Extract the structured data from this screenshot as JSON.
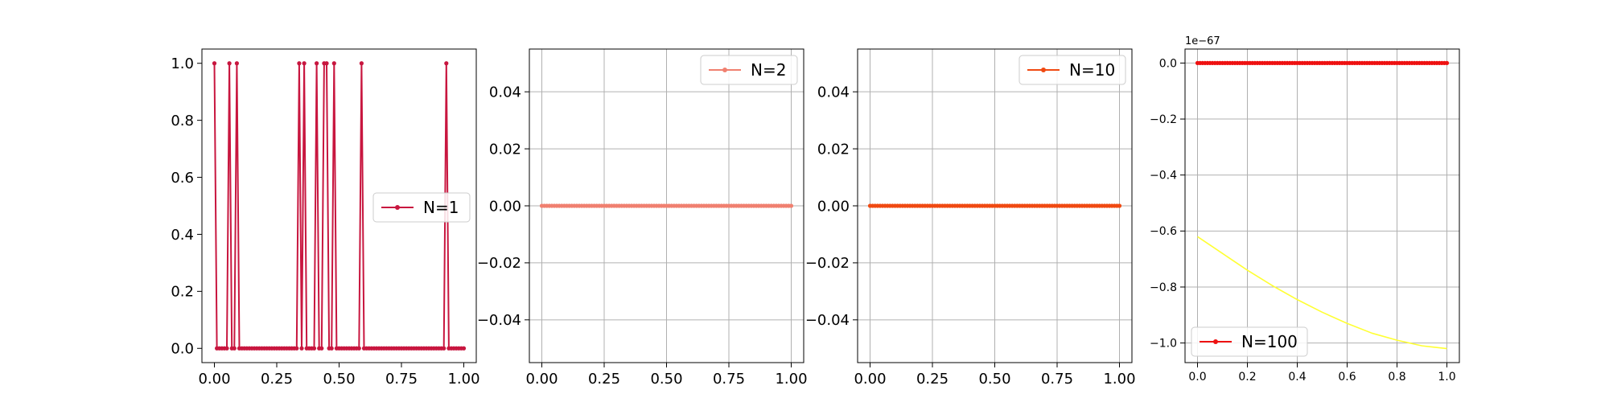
{
  "chart_data": [
    {
      "type": "line",
      "series": [
        {
          "name": "N=1",
          "color": "#c8163f",
          "x": [
            0.0,
            0.01,
            0.02,
            0.03,
            0.04,
            0.05,
            0.06,
            0.07,
            0.08,
            0.09,
            0.1,
            0.11,
            0.12,
            0.13,
            0.14,
            0.15,
            0.16,
            0.17,
            0.18,
            0.19,
            0.2,
            0.21,
            0.22,
            0.23,
            0.24,
            0.25,
            0.26,
            0.27,
            0.28,
            0.29,
            0.3,
            0.31,
            0.32,
            0.33,
            0.34,
            0.35,
            0.36,
            0.37,
            0.38,
            0.39,
            0.4,
            0.41,
            0.42,
            0.43,
            0.44,
            0.45,
            0.46,
            0.47,
            0.48,
            0.49,
            0.5,
            0.51,
            0.52,
            0.53,
            0.54,
            0.55,
            0.56,
            0.57,
            0.58,
            0.59,
            0.6,
            0.61,
            0.62,
            0.63,
            0.64,
            0.65,
            0.66,
            0.67,
            0.68,
            0.69,
            0.7,
            0.71,
            0.72,
            0.73,
            0.74,
            0.75,
            0.76,
            0.77,
            0.78,
            0.79,
            0.8,
            0.81,
            0.82,
            0.83,
            0.84,
            0.85,
            0.86,
            0.87,
            0.88,
            0.89,
            0.9,
            0.91,
            0.92,
            0.93,
            0.94,
            0.95,
            0.96,
            0.97,
            0.98,
            0.99,
            1.0
          ],
          "y": [
            1,
            0,
            0,
            0,
            0,
            0,
            1,
            0,
            0,
            1,
            0,
            0,
            0,
            0,
            0,
            0,
            0,
            0,
            0,
            0,
            0,
            0,
            0,
            0,
            0,
            0,
            0,
            0,
            0,
            0,
            0,
            0,
            0,
            0,
            1,
            0,
            1,
            0,
            0,
            0,
            0,
            1,
            0,
            0,
            1,
            1,
            0,
            0,
            1,
            0,
            0,
            0,
            0,
            0,
            0,
            0,
            0,
            0,
            0,
            1,
            0,
            0,
            0,
            0,
            0,
            0,
            0,
            0,
            0,
            0,
            0,
            0,
            0,
            0,
            0,
            0,
            0,
            0,
            0,
            0,
            0,
            0,
            0,
            0,
            0,
            0,
            0,
            0,
            0,
            0,
            0,
            0,
            0,
            1,
            0,
            0,
            0,
            0,
            0,
            0,
            0
          ]
        }
      ],
      "xlim": [
        -0.05,
        1.05
      ],
      "ylim": [
        -0.05,
        1.05
      ],
      "xticks": [
        "0.00",
        "0.25",
        "0.50",
        "0.75",
        "1.00"
      ],
      "yticks": [
        "0.0",
        "0.2",
        "0.4",
        "0.6",
        "0.8",
        "1.0"
      ],
      "xtick_values": [
        0,
        0.25,
        0.5,
        0.75,
        1.0
      ],
      "ytick_values": [
        0,
        0.2,
        0.4,
        0.6,
        0.8,
        1.0
      ],
      "grid": false,
      "legend_position": "center-right"
    },
    {
      "type": "line",
      "series": [
        {
          "name": "N=2",
          "color": "#f08070",
          "x_range": [
            0,
            1
          ],
          "constant_y": 0
        }
      ],
      "xlim": [
        -0.05,
        1.05
      ],
      "ylim": [
        -0.055,
        0.055
      ],
      "xticks": [
        "0.00",
        "0.25",
        "0.50",
        "0.75",
        "1.00"
      ],
      "yticks": [
        "0.04",
        "0.02",
        "0.00",
        "−0.02",
        "−0.04"
      ],
      "xtick_values": [
        0,
        0.25,
        0.5,
        0.75,
        1.0
      ],
      "ytick_values": [
        0.04,
        0.02,
        0,
        -0.02,
        -0.04
      ],
      "grid": true,
      "legend_position": "top-right"
    },
    {
      "type": "line",
      "series": [
        {
          "name": "N=10",
          "color": "#f04a12",
          "x_range": [
            0,
            1
          ],
          "constant_y": 0
        }
      ],
      "xlim": [
        -0.05,
        1.05
      ],
      "ylim": [
        -0.055,
        0.055
      ],
      "xticks": [
        "0.00",
        "0.25",
        "0.50",
        "0.75",
        "1.00"
      ],
      "yticks": [
        "0.04",
        "0.02",
        "0.00",
        "−0.02",
        "−0.04"
      ],
      "xtick_values": [
        0,
        0.25,
        0.5,
        0.75,
        1.0
      ],
      "ytick_values": [
        0.04,
        0.02,
        0,
        -0.02,
        -0.04
      ],
      "grid": true,
      "legend_position": "top-right"
    },
    {
      "type": "line",
      "offset_text": "1e−67",
      "series": [
        {
          "name": "N=100",
          "color": "#ee1111",
          "x_range": [
            0,
            1
          ],
          "constant_y": 0
        },
        {
          "color": "#ffff33",
          "x": [
            0.0,
            0.1,
            0.2,
            0.3,
            0.4,
            0.5,
            0.6,
            0.7,
            0.8,
            0.9,
            1.0
          ],
          "y": [
            -0.62,
            -0.68,
            -0.74,
            -0.795,
            -0.845,
            -0.89,
            -0.93,
            -0.965,
            -0.99,
            -1.01,
            -1.02
          ]
        }
      ],
      "xlim": [
        -0.05,
        1.05
      ],
      "ylim": [
        -1.07,
        0.05
      ],
      "xticks": [
        "0.0",
        "0.2",
        "0.4",
        "0.6",
        "0.8",
        "1.0"
      ],
      "yticks": [
        "0.0",
        "−0.2",
        "−0.4",
        "−0.6",
        "−0.8",
        "−1.0"
      ],
      "xtick_values": [
        0,
        0.2,
        0.4,
        0.6,
        0.8,
        1.0
      ],
      "ytick_values": [
        0,
        -0.2,
        -0.4,
        -0.6,
        -0.8,
        -1.0
      ],
      "grid": true,
      "legend_position": "bottom-left"
    }
  ]
}
